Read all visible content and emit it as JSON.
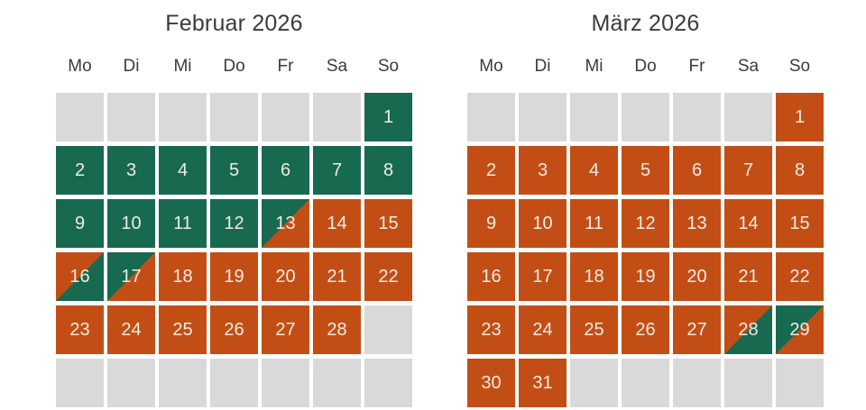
{
  "colors": {
    "available": "#17694f",
    "booked": "#c24e16",
    "empty_day": "#d9d9d9",
    "heading_text": "#3b3b3b",
    "day_number_text": "#f2ece1",
    "background": "#ffffff"
  },
  "legend_semantics": {
    "available": "green",
    "booked": "orange",
    "empty": "gray placeholder",
    "available-booked": "diagonal split: green top-left, orange bottom-right",
    "booked-available": "diagonal split: orange top-left, green bottom-right"
  },
  "calendars": [
    {
      "title": "Februar 2026",
      "weekdays": [
        "Mo",
        "Di",
        "Mi",
        "Do",
        "Fr",
        "Sa",
        "So"
      ],
      "weeks": [
        [
          {
            "day": "",
            "state": "empty"
          },
          {
            "day": "",
            "state": "empty"
          },
          {
            "day": "",
            "state": "empty"
          },
          {
            "day": "",
            "state": "empty"
          },
          {
            "day": "",
            "state": "empty"
          },
          {
            "day": "",
            "state": "empty"
          },
          {
            "day": "1",
            "state": "available"
          }
        ],
        [
          {
            "day": "2",
            "state": "available"
          },
          {
            "day": "3",
            "state": "available"
          },
          {
            "day": "4",
            "state": "available"
          },
          {
            "day": "5",
            "state": "available"
          },
          {
            "day": "6",
            "state": "available"
          },
          {
            "day": "7",
            "state": "available"
          },
          {
            "day": "8",
            "state": "available"
          }
        ],
        [
          {
            "day": "9",
            "state": "available"
          },
          {
            "day": "10",
            "state": "available"
          },
          {
            "day": "11",
            "state": "available"
          },
          {
            "day": "12",
            "state": "available"
          },
          {
            "day": "13",
            "state": "available-booked"
          },
          {
            "day": "14",
            "state": "booked"
          },
          {
            "day": "15",
            "state": "booked"
          }
        ],
        [
          {
            "day": "16",
            "state": "booked-available"
          },
          {
            "day": "17",
            "state": "available-booked"
          },
          {
            "day": "18",
            "state": "booked"
          },
          {
            "day": "19",
            "state": "booked"
          },
          {
            "day": "20",
            "state": "booked"
          },
          {
            "day": "21",
            "state": "booked"
          },
          {
            "day": "22",
            "state": "booked"
          }
        ],
        [
          {
            "day": "23",
            "state": "booked"
          },
          {
            "day": "24",
            "state": "booked"
          },
          {
            "day": "25",
            "state": "booked"
          },
          {
            "day": "26",
            "state": "booked"
          },
          {
            "day": "27",
            "state": "booked"
          },
          {
            "day": "28",
            "state": "booked"
          },
          {
            "day": "",
            "state": "empty"
          }
        ],
        [
          {
            "day": "",
            "state": "empty"
          },
          {
            "day": "",
            "state": "empty"
          },
          {
            "day": "",
            "state": "empty"
          },
          {
            "day": "",
            "state": "empty"
          },
          {
            "day": "",
            "state": "empty"
          },
          {
            "day": "",
            "state": "empty"
          },
          {
            "day": "",
            "state": "empty"
          }
        ]
      ]
    },
    {
      "title": "März 2026",
      "weekdays": [
        "Mo",
        "Di",
        "Mi",
        "Do",
        "Fr",
        "Sa",
        "So"
      ],
      "weeks": [
        [
          {
            "day": "",
            "state": "empty"
          },
          {
            "day": "",
            "state": "empty"
          },
          {
            "day": "",
            "state": "empty"
          },
          {
            "day": "",
            "state": "empty"
          },
          {
            "day": "",
            "state": "empty"
          },
          {
            "day": "",
            "state": "empty"
          },
          {
            "day": "1",
            "state": "booked"
          }
        ],
        [
          {
            "day": "2",
            "state": "booked"
          },
          {
            "day": "3",
            "state": "booked"
          },
          {
            "day": "4",
            "state": "booked"
          },
          {
            "day": "5",
            "state": "booked"
          },
          {
            "day": "6",
            "state": "booked"
          },
          {
            "day": "7",
            "state": "booked"
          },
          {
            "day": "8",
            "state": "booked"
          }
        ],
        [
          {
            "day": "9",
            "state": "booked"
          },
          {
            "day": "10",
            "state": "booked"
          },
          {
            "day": "11",
            "state": "booked"
          },
          {
            "day": "12",
            "state": "booked"
          },
          {
            "day": "13",
            "state": "booked"
          },
          {
            "day": "14",
            "state": "booked"
          },
          {
            "day": "15",
            "state": "booked"
          }
        ],
        [
          {
            "day": "16",
            "state": "booked"
          },
          {
            "day": "17",
            "state": "booked"
          },
          {
            "day": "18",
            "state": "booked"
          },
          {
            "day": "19",
            "state": "booked"
          },
          {
            "day": "20",
            "state": "booked"
          },
          {
            "day": "21",
            "state": "booked"
          },
          {
            "day": "22",
            "state": "booked"
          }
        ],
        [
          {
            "day": "23",
            "state": "booked"
          },
          {
            "day": "24",
            "state": "booked"
          },
          {
            "day": "25",
            "state": "booked"
          },
          {
            "day": "26",
            "state": "booked"
          },
          {
            "day": "27",
            "state": "booked"
          },
          {
            "day": "28",
            "state": "booked-available"
          },
          {
            "day": "29",
            "state": "available-booked"
          }
        ],
        [
          {
            "day": "30",
            "state": "booked"
          },
          {
            "day": "31",
            "state": "booked"
          },
          {
            "day": "",
            "state": "empty"
          },
          {
            "day": "",
            "state": "empty"
          },
          {
            "day": "",
            "state": "empty"
          },
          {
            "day": "",
            "state": "empty"
          },
          {
            "day": "",
            "state": "empty"
          }
        ]
      ]
    }
  ]
}
